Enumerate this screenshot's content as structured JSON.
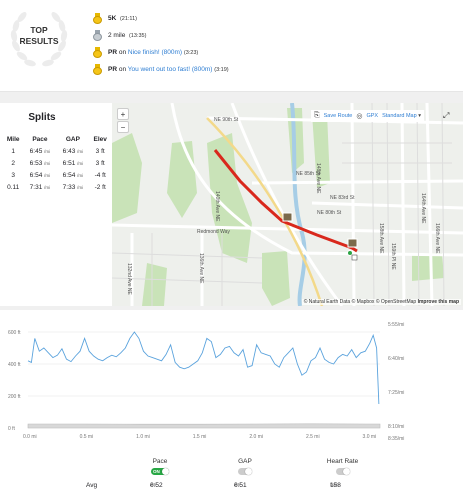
{
  "top_results": {
    "title_line1": "TOP",
    "title_line2": "RESULTS",
    "achievements": [
      {
        "medal": "gold",
        "bold": "5K",
        "link": "",
        "time": "(21:11)"
      },
      {
        "medal": "silver",
        "bold": "2 mile",
        "link": "",
        "time": "(13:35)"
      },
      {
        "medal": "gold",
        "bold": "PR",
        "pre": " on ",
        "link": "Nice finish! (800m)",
        "time": "(3:23)"
      },
      {
        "medal": "gold",
        "bold": "PR",
        "pre": " on ",
        "link": "You went out too fast! (800m)",
        "time": "(3:19)"
      }
    ]
  },
  "splits": {
    "title": "Splits",
    "headers": [
      "Mile",
      "Pace",
      "GAP",
      "Elev"
    ],
    "unit_pace": "/mi",
    "rows": [
      {
        "mile": "1",
        "pace": "6:45",
        "gap": "6:43",
        "elev": "3 ft"
      },
      {
        "mile": "2",
        "pace": "6:53",
        "gap": "6:51",
        "elev": "3 ft"
      },
      {
        "mile": "3",
        "pace": "6:54",
        "gap": "6:54",
        "elev": "-4 ft"
      },
      {
        "mile": "0.11",
        "pace": "7:31",
        "gap": "7:33",
        "elev": "-2 ft"
      }
    ]
  },
  "map": {
    "zoom_in": "+",
    "zoom_out": "−",
    "save_route": "Save Route",
    "gpx": "GPX",
    "map_style": "Standard Map",
    "attribution": "© Natural Earth Data © Mapbox © OpenStreetMap",
    "improve": "Improve this map",
    "street_labels": {
      "ne90": "NE 90th St",
      "ne85": "NE 85th St",
      "ne83": "NE 83rd St",
      "ne80": "NE 80th St",
      "redmond": "Redmond Way",
      "ave148": "148th Ave NE",
      "ave164": "164th Ave NE",
      "ave166": "166th Ave NE",
      "ave158": "158th Ave NE",
      "ave159": "159th Pl NE",
      "ave154": "154th Ave NE",
      "ave160": "160th Ave NE",
      "ave161": "161st Ave NE",
      "ave163": "163rd Ave NE",
      "ave132": "132nd Ave NE",
      "ave136": "136th Ave NE",
      "ave140": "140th Ave NE",
      "ave134": "134th Ave NE"
    }
  },
  "chart_data": {
    "type": "area",
    "x_ticks": [
      "0.0 mi",
      "0.5 mi",
      "1.0 mi",
      "1.5 mi",
      "2.0 mi",
      "2.5 mi",
      "3.0 mi"
    ],
    "y_left_ticks": [
      "600 ft",
      "400 ft",
      "200 ft",
      "0 ft"
    ],
    "y_right_ticks": [
      "5:55/mi",
      "6:40/mi",
      "7:25/mi",
      "8:10/mi",
      "8:35/mi"
    ],
    "xlim": [
      0,
      3.11
    ],
    "series": [
      {
        "kind": "pace",
        "axis": "right",
        "x": [
          0.0,
          0.03,
          0.06,
          0.1,
          0.14,
          0.18,
          0.22,
          0.26,
          0.3,
          0.34,
          0.38,
          0.42,
          0.46,
          0.5,
          0.54,
          0.58,
          0.62,
          0.66,
          0.7,
          0.74,
          0.78,
          0.82,
          0.86,
          0.9,
          0.94,
          0.98,
          1.02,
          1.06,
          1.1,
          1.14,
          1.18,
          1.22,
          1.26,
          1.3,
          1.34,
          1.38,
          1.42,
          1.46,
          1.5,
          1.54,
          1.58,
          1.62,
          1.66,
          1.7,
          1.74,
          1.78,
          1.82,
          1.86,
          1.9,
          1.94,
          1.98,
          2.02,
          2.06,
          2.1,
          2.14,
          2.18,
          2.22,
          2.26,
          2.3,
          2.34,
          2.38,
          2.42,
          2.46,
          2.5,
          2.54,
          2.58,
          2.62,
          2.66,
          2.7,
          2.74,
          2.78,
          2.82,
          2.86,
          2.9,
          2.94,
          2.98,
          3.02,
          3.05,
          3.08,
          3.1
        ],
        "y": [
          420,
          410,
          560,
          480,
          500,
          470,
          440,
          455,
          495,
          430,
          415,
          450,
          480,
          560,
          480,
          450,
          430,
          420,
          440,
          455,
          445,
          470,
          500,
          560,
          600,
          560,
          480,
          450,
          440,
          430,
          420,
          460,
          520,
          410,
          380,
          370,
          380,
          400,
          420,
          470,
          560,
          540,
          440,
          460,
          500,
          510,
          470,
          450,
          490,
          380,
          390,
          520,
          470,
          460,
          450,
          400,
          380,
          440,
          470,
          500,
          400,
          330,
          350,
          420,
          440,
          500,
          430,
          410,
          400,
          440,
          460,
          450,
          490,
          440,
          470,
          480,
          530,
          580,
          500,
          150
        ]
      },
      {
        "kind": "elevation",
        "axis": "left",
        "x": [
          0.0,
          0.5,
          1.0,
          1.5,
          2.0,
          2.5,
          3.0,
          3.11
        ],
        "y": [
          25,
          25,
          24,
          24,
          25,
          26,
          25,
          25
        ]
      }
    ]
  },
  "toggles": [
    {
      "label": "Pace",
      "state": "on",
      "on_text": "ON"
    },
    {
      "label": "GAP",
      "state": "off"
    },
    {
      "label": "Heart Rate",
      "state": "off"
    }
  ],
  "avg": {
    "label": "Avg",
    "pace": "6:52",
    "pace_unit": "/mi",
    "gap": "6:51",
    "gap_unit": "/mi",
    "hr": "158",
    "hr_unit": "bpm"
  }
}
